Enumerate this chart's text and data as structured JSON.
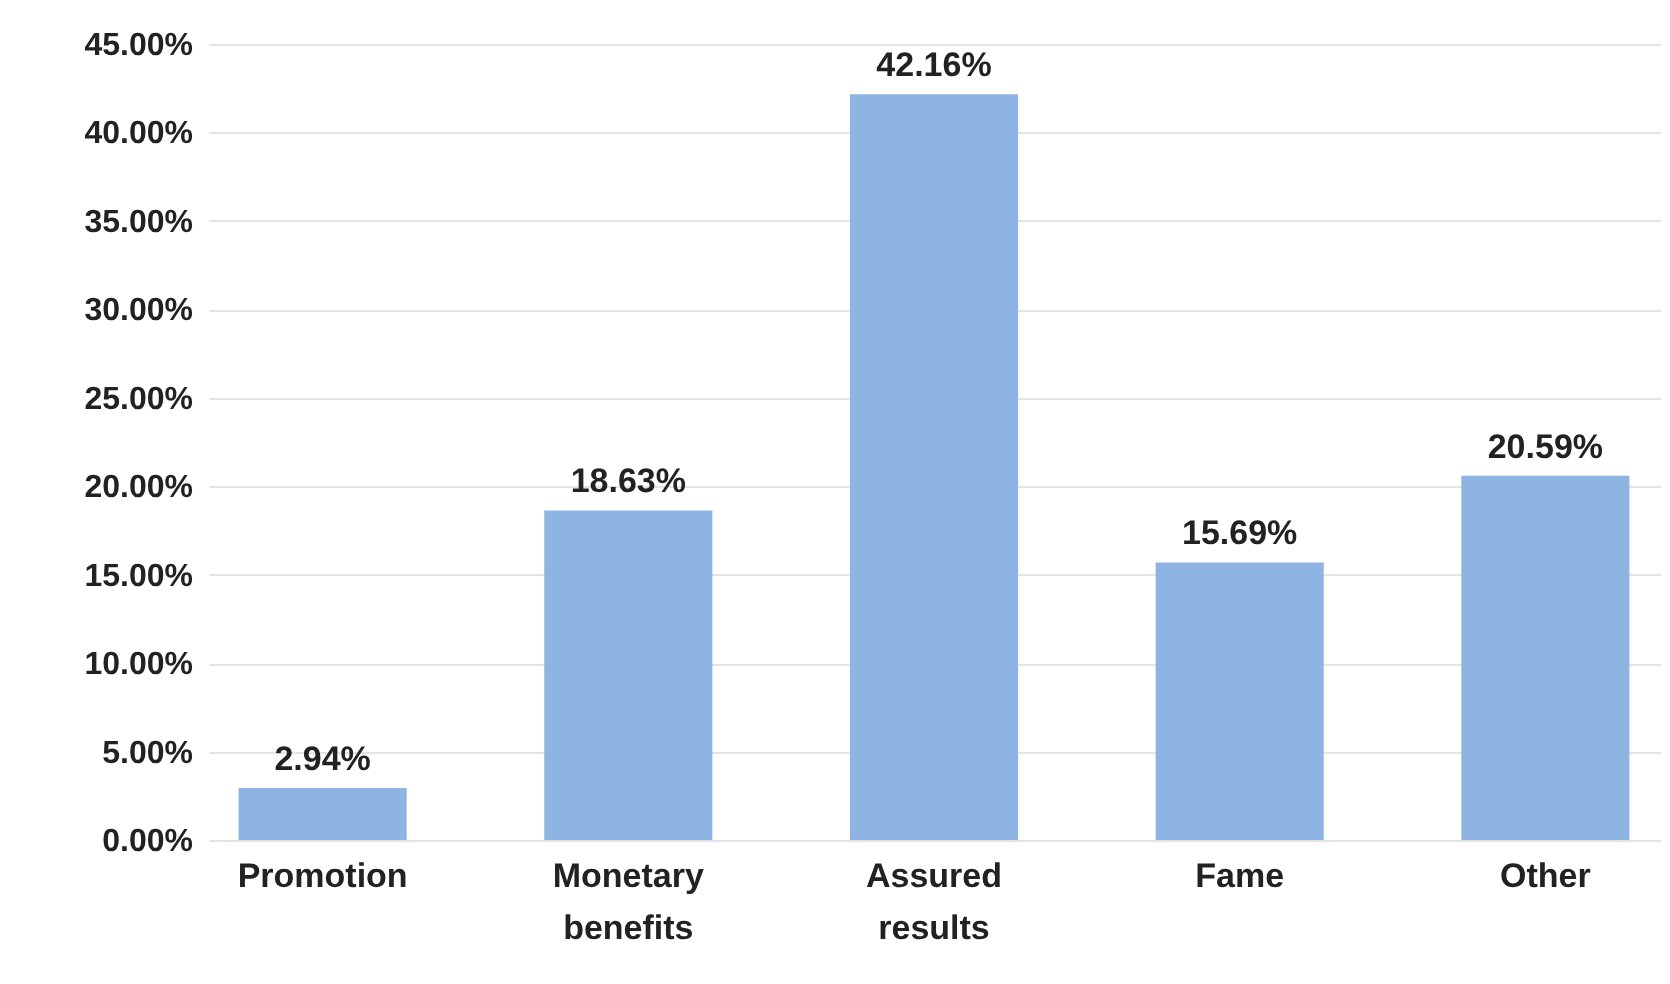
{
  "chart_data": {
    "type": "bar",
    "categories": [
      "Promotion",
      "Monetary benefits",
      "Assured results",
      "Fame",
      "Other"
    ],
    "values": [
      2.94,
      18.63,
      42.16,
      15.69,
      20.59
    ],
    "value_labels": [
      "2.94%",
      "18.63%",
      "42.16%",
      "15.69%",
      "20.59%"
    ],
    "color": "#8db4e2",
    "ylim": [
      0,
      45
    ],
    "yticks": [
      {
        "value": 0,
        "label": "0.00%"
      },
      {
        "value": 5,
        "label": "5.00%"
      },
      {
        "value": 10,
        "label": "10.00%"
      },
      {
        "value": 15,
        "label": "15.00%"
      },
      {
        "value": 20,
        "label": "20.00%"
      },
      {
        "value": 25,
        "label": "25.00%"
      },
      {
        "value": 30,
        "label": "30.00%"
      },
      {
        "value": 35,
        "label": "35.00%"
      },
      {
        "value": 40,
        "label": "40.00%"
      },
      {
        "value": 45,
        "label": "45.00%"
      }
    ],
    "grid": "y"
  }
}
